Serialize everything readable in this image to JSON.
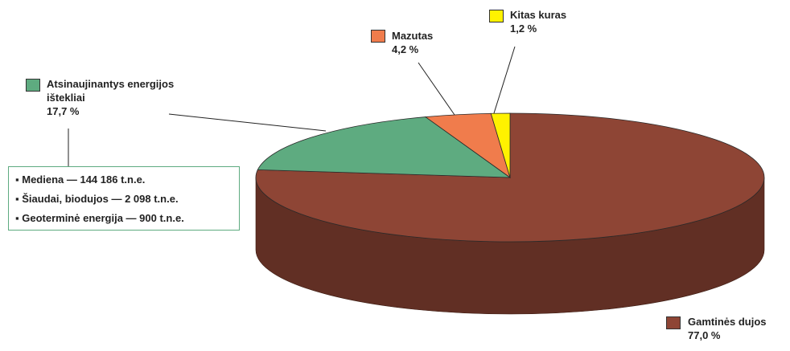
{
  "chart_data": {
    "type": "pie",
    "categories": [
      "Gamtinės dujos",
      "Atsinaujinantys energijos ištekliai",
      "Mazutas",
      "Kitas kuras"
    ],
    "values": [
      77.0,
      17.7,
      4.2,
      1.2
    ],
    "value_labels": [
      "77,0 %",
      "17,7 %",
      "4,2 %",
      "1,2 %"
    ],
    "colors": [
      "#8e4535",
      "#5eab80",
      "#f07c4c",
      "#fff200"
    ],
    "annotations": [
      "Mediena — 144 186 t.n.e.",
      "Šiaudai, biodujos — 2 098 t.n.e.",
      "Geoterminė energija — 900 t.n.e."
    ]
  }
}
